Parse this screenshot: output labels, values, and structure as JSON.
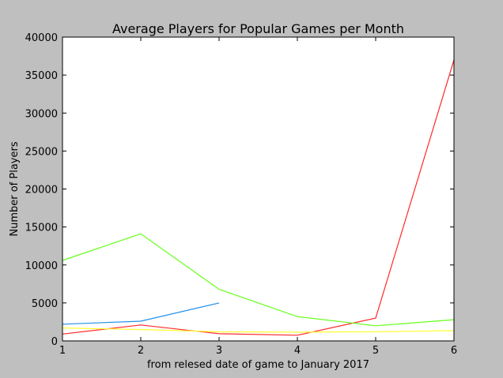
{
  "chart_data": {
    "type": "line",
    "title": "Average Players for Popular Games per Month",
    "xlabel": "from relesed date of game to January 2017",
    "ylabel": "Number of Players",
    "xlim": [
      1,
      6
    ],
    "ylim": [
      0,
      40000
    ],
    "xticks": [
      1,
      2,
      3,
      4,
      5,
      6
    ],
    "yticks": [
      0,
      5000,
      10000,
      15000,
      20000,
      25000,
      30000,
      35000,
      40000
    ],
    "grid": false,
    "series": [
      {
        "color": "#1f8fe8",
        "x": [
          1,
          2,
          3
        ],
        "y": [
          2200,
          2600,
          5000
        ]
      },
      {
        "color": "#ff2a2a",
        "x": [
          1,
          2,
          3,
          4,
          5,
          6
        ],
        "y": [
          900,
          2100,
          950,
          750,
          3000,
          37000
        ]
      },
      {
        "color": "#66ff1a",
        "x": [
          1,
          2,
          3,
          4,
          5,
          6
        ],
        "y": [
          10600,
          14100,
          6800,
          3200,
          2000,
          2800
        ]
      },
      {
        "color": "#ffff33",
        "x": [
          1,
          2,
          3,
          4,
          5,
          6
        ],
        "y": [
          1700,
          1500,
          1200,
          1150,
          1200,
          1350
        ]
      }
    ]
  }
}
